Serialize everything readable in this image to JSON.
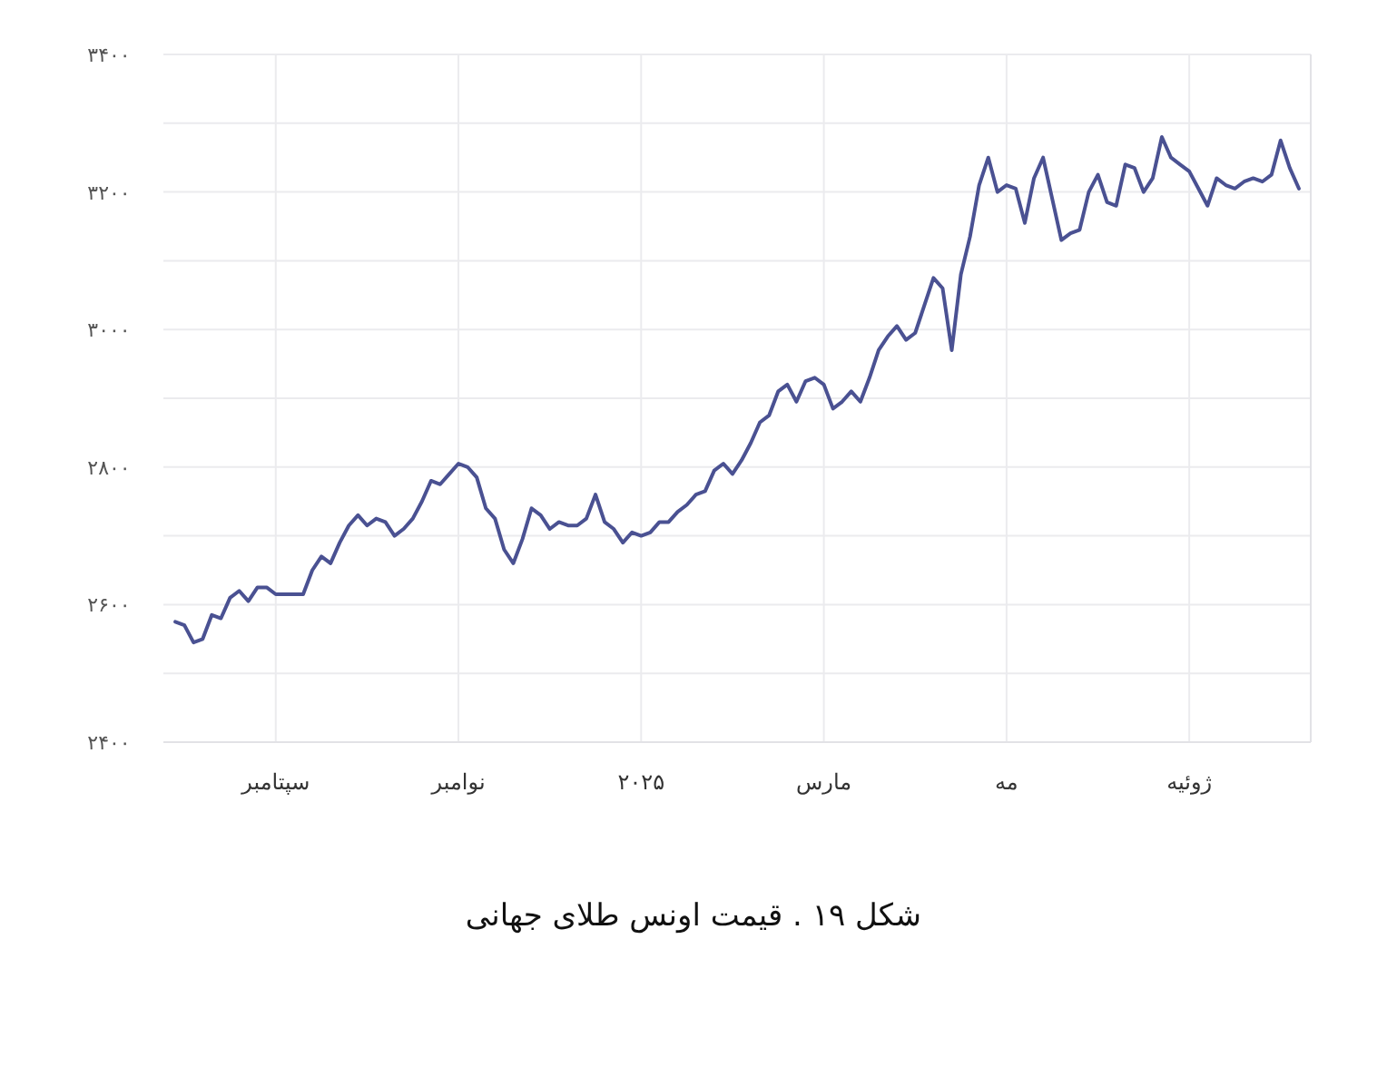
{
  "chart_data": {
    "type": "line",
    "title": "شکل ۱۹ . قیمت اونس طلای جهانی",
    "ylim": [
      2400,
      3400
    ],
    "grid": true,
    "line_style": "solid",
    "yticks": [
      {
        "value": 2400,
        "label": "۲۴۰۰"
      },
      {
        "value": 2500,
        "label": null
      },
      {
        "value": 2600,
        "label": "۲۶۰۰"
      },
      {
        "value": 2700,
        "label": null
      },
      {
        "value": 2800,
        "label": "۲۸۰۰"
      },
      {
        "value": 2900,
        "label": null
      },
      {
        "value": 3000,
        "label": "۳۰۰۰"
      },
      {
        "value": 3100,
        "label": null
      },
      {
        "value": 3200,
        "label": "۳۲۰۰"
      },
      {
        "value": 3300,
        "label": null
      },
      {
        "value": 3400,
        "label": "۳۴۰۰"
      }
    ],
    "categories": [
      null,
      null,
      null,
      null,
      null,
      null,
      null,
      null,
      null,
      null,
      null,
      "سپتامبر",
      null,
      null,
      null,
      null,
      null,
      null,
      null,
      null,
      null,
      null,
      null,
      null,
      null,
      null,
      null,
      null,
      null,
      null,
      null,
      "نوامبر",
      null,
      null,
      null,
      null,
      null,
      null,
      null,
      null,
      null,
      null,
      null,
      null,
      null,
      null,
      null,
      null,
      null,
      null,
      null,
      "۲۰۲۵",
      null,
      null,
      null,
      null,
      null,
      null,
      null,
      null,
      null,
      null,
      null,
      null,
      null,
      null,
      null,
      null,
      null,
      null,
      null,
      "مارس",
      null,
      null,
      null,
      null,
      null,
      null,
      null,
      null,
      null,
      null,
      null,
      null,
      null,
      null,
      null,
      null,
      null,
      null,
      null,
      "مه",
      null,
      null,
      null,
      null,
      null,
      null,
      null,
      null,
      null,
      null,
      null,
      null,
      null,
      null,
      null,
      null,
      null,
      null,
      null,
      "ژوئیه",
      null,
      null,
      null,
      null,
      null,
      null,
      null,
      null,
      null,
      null,
      null,
      null
    ],
    "series": [
      {
        "color": "#4a5192",
        "values": [
          2575,
          2570,
          2545,
          2550,
          2585,
          2580,
          2610,
          2620,
          2605,
          2625,
          2625,
          2615,
          2615,
          2615,
          2615,
          2650,
          2670,
          2660,
          2690,
          2715,
          2730,
          2715,
          2725,
          2720,
          2700,
          2710,
          2725,
          2750,
          2780,
          2775,
          2790,
          2805,
          2800,
          2785,
          2740,
          2725,
          2680,
          2660,
          2695,
          2740,
          2730,
          2710,
          2720,
          2715,
          2715,
          2725,
          2760,
          2720,
          2710,
          2690,
          2705,
          2700,
          2705,
          2720,
          2720,
          2735,
          2745,
          2760,
          2765,
          2795,
          2805,
          2790,
          2810,
          2835,
          2865,
          2875,
          2910,
          2920,
          2895,
          2925,
          2930,
          2920,
          2885,
          2895,
          2910,
          2895,
          2930,
          2970,
          2990,
          3005,
          2985,
          2995,
          3035,
          3075,
          3060,
          2970,
          3080,
          3135,
          3210,
          3250,
          3200,
          3210,
          3205,
          3155,
          3220,
          3250,
          3190,
          3130,
          3140,
          3145,
          3200,
          3225,
          3185,
          3180,
          3240,
          3235,
          3200,
          3220,
          3280,
          3250,
          3240,
          3230,
          3205,
          3180,
          3220,
          3210,
          3205,
          3215,
          3220,
          3215,
          3225,
          3275,
          3235,
          3205
        ]
      }
    ]
  }
}
